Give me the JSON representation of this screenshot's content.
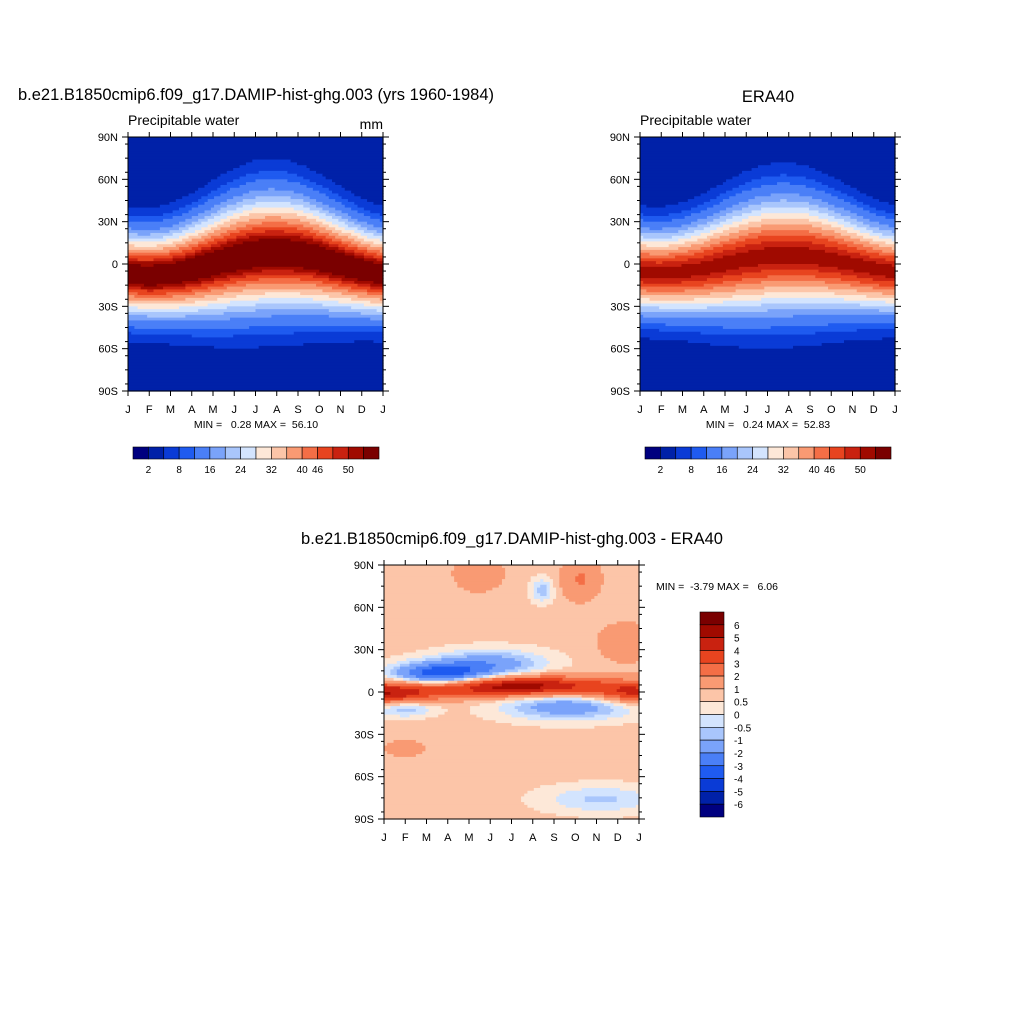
{
  "chart_data": [
    {
      "type": "heatmap",
      "title": "b.e21.B1850cmip6.f09_g17.DAMIP-hist-ghg.003 (yrs 1960-1984)",
      "left_label": "Precipitable water",
      "units": "mm",
      "x_tick_labels": [
        "J",
        "F",
        "M",
        "A",
        "M",
        "J",
        "J",
        "A",
        "S",
        "O",
        "N",
        "D",
        "J"
      ],
      "y_tick_labels": [
        "90N",
        "60N",
        "30N",
        "0",
        "30S",
        "60S",
        "90S"
      ],
      "ylim": [
        -90,
        90
      ],
      "stats_text": "MIN =   0.28 MAX =  56.10",
      "min": 0.28,
      "max": 56.1,
      "colorbar": {
        "orientation": "horizontal",
        "levels": [
          2,
          5,
          8,
          11,
          16,
          20,
          24,
          28,
          32,
          36,
          40,
          43,
          46,
          48,
          50
        ],
        "tick_labels": [
          "2",
          "8",
          "16",
          "24",
          "32",
          "40",
          "46",
          "50"
        ]
      },
      "field": {
        "eq_peak": 53,
        "pole_value": 2,
        "peak_lat_amplitude": 9,
        "peak_lat_phase": 0.58,
        "ns_asymmetry": 3
      }
    },
    {
      "type": "heatmap",
      "title": "ERA40",
      "left_label": "Precipitable water",
      "units": "",
      "x_tick_labels": [
        "J",
        "F",
        "M",
        "A",
        "M",
        "J",
        "J",
        "A",
        "S",
        "O",
        "N",
        "D",
        "J"
      ],
      "y_tick_labels": [
        "90N",
        "60N",
        "30N",
        "0",
        "30S",
        "60S",
        "90S"
      ],
      "ylim": [
        -90,
        90
      ],
      "stats_text": "MIN =   0.24 MAX =  52.83",
      "min": 0.24,
      "max": 52.83,
      "colorbar": {
        "orientation": "horizontal",
        "levels": [
          2,
          5,
          8,
          11,
          16,
          20,
          24,
          28,
          32,
          36,
          40,
          43,
          46,
          48,
          50
        ],
        "tick_labels": [
          "2",
          "8",
          "16",
          "24",
          "32",
          "40",
          "46",
          "50"
        ]
      },
      "field": {
        "eq_peak": 49,
        "pole_value": 2,
        "peak_lat_amplitude": 7,
        "peak_lat_phase": 0.58,
        "ns_asymmetry": 3
      }
    },
    {
      "type": "heatmap",
      "title": "b.e21.B1850cmip6.f09_g17.DAMIP-hist-ghg.003 - ERA40",
      "left_label": "",
      "units": "",
      "x_tick_labels": [
        "J",
        "F",
        "M",
        "A",
        "M",
        "J",
        "J",
        "A",
        "S",
        "O",
        "N",
        "D",
        "J"
      ],
      "y_tick_labels": [
        "90N",
        "60N",
        "30N",
        "0",
        "30S",
        "60S",
        "90S"
      ],
      "ylim": [
        -90,
        90
      ],
      "stats_text": "MIN =  -3.79 MAX =   6.06",
      "min": -3.79,
      "max": 6.06,
      "colorbar": {
        "orientation": "vertical",
        "levels": [
          -6,
          -5,
          -4,
          -3,
          -2,
          -1,
          -0.5,
          0,
          0.5,
          1,
          2,
          3,
          4,
          5,
          6
        ],
        "tick_labels": [
          "6",
          "5",
          "4",
          "3",
          "2",
          "1",
          "0.5",
          "0",
          "-0.5",
          "-1",
          "-2",
          "-3",
          "-4",
          "-5",
          "-6"
        ]
      }
    }
  ],
  "palette": [
    "#00007f",
    "#0021a8",
    "#0a3bd6",
    "#1f5bf0",
    "#4a7ff7",
    "#7aa3fa",
    "#a9c6fc",
    "#d3e4fe",
    "#fde8d8",
    "#fcc5a8",
    "#f99a73",
    "#f46e46",
    "#e8441f",
    "#c92210",
    "#a00a00",
    "#7a0000"
  ]
}
